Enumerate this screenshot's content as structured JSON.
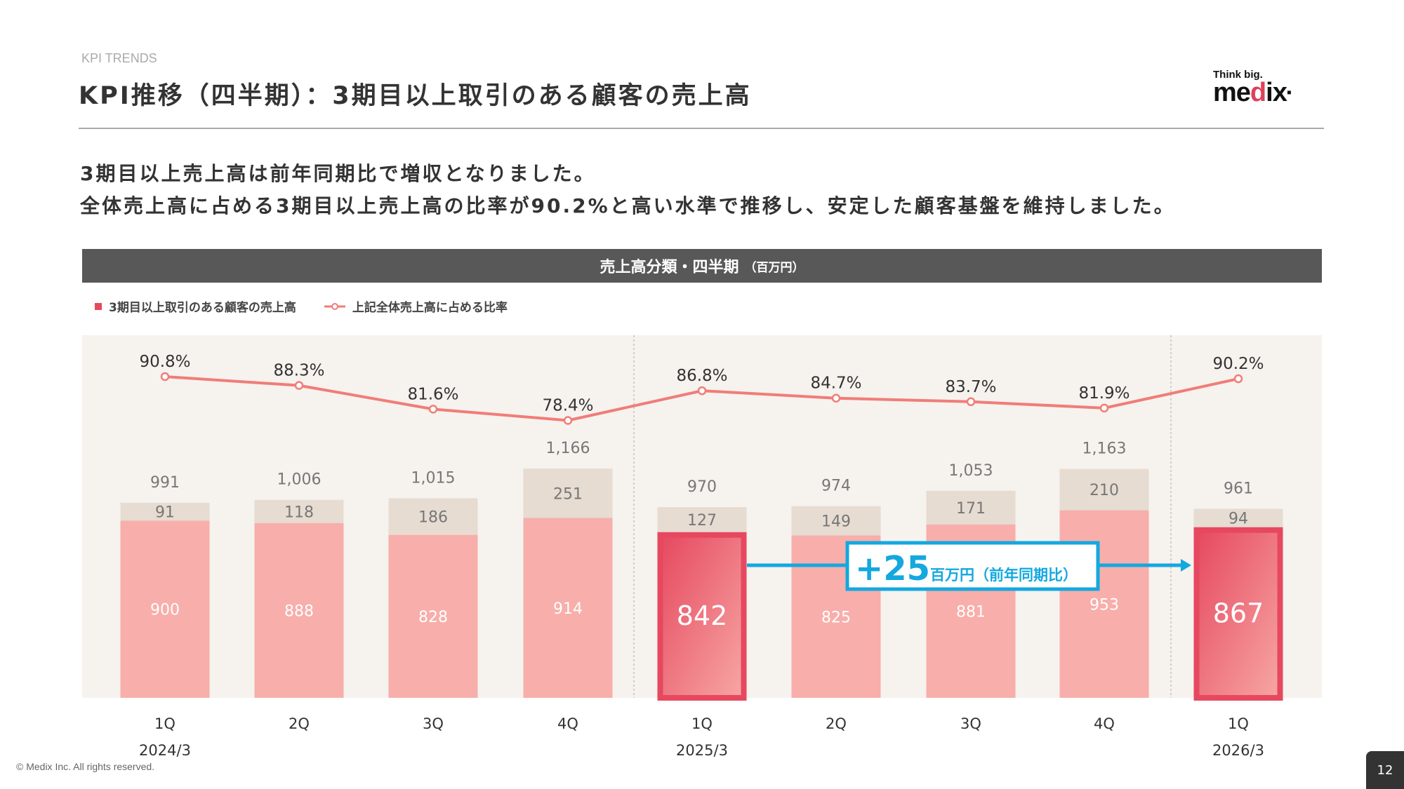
{
  "header": {
    "kicker": "KPI TRENDS",
    "title": "KPI推移（四半期）：3期目以上取引のある顧客の売上高",
    "logo_tagline": "Think big.",
    "logo_text": "medix"
  },
  "lead": [
    "3期目以上売上高は前年同期比で増収となりました。",
    "全体売上高に占める3期目以上売上高の比率が90.2%と高い水準で推移し、安定した顧客基盤を維持しました。"
  ],
  "band": {
    "title": "売上高分類・四半期",
    "unit": "（百万円）"
  },
  "legend": {
    "bar": "3期目以上取引のある顧客の売上高",
    "line": "上記全体売上高に占める比率"
  },
  "chart_data": {
    "type": "bar",
    "stacked": true,
    "categories": [
      "1Q",
      "2Q",
      "3Q",
      "4Q",
      "1Q",
      "2Q",
      "3Q",
      "4Q",
      "1Q"
    ],
    "year_labels": [
      "2024/3",
      "",
      "",
      "",
      "2025/3",
      "",
      "",
      "",
      "2026/3"
    ],
    "series": [
      {
        "name": "3期目以上取引のある顧客の売上高",
        "values": [
          900,
          888,
          828,
          914,
          842,
          825,
          881,
          953,
          867
        ],
        "color": "#f8aeaa"
      },
      {
        "values": [
          91,
          118,
          186,
          251,
          127,
          149,
          171,
          210,
          94
        ],
        "color": "#e6dcd2"
      }
    ],
    "totals": [
      "991",
      "1,006",
      "1,015",
      "1,166",
      "970",
      "974",
      "1,053",
      "1,163",
      "961"
    ],
    "line": {
      "name": "上記全体売上高に占める比率",
      "values": [
        90.8,
        88.3,
        81.6,
        78.4,
        86.8,
        84.7,
        83.7,
        81.9,
        90.2
      ],
      "labels": [
        "90.8%",
        "88.3%",
        "81.6%",
        "78.4%",
        "86.8%",
        "84.7%",
        "83.7%",
        "81.9%",
        "90.2%"
      ],
      "color": "#f07d78"
    },
    "highlight_indices": [
      4,
      8
    ],
    "highlight_color": "#e6485f",
    "annotation": {
      "value": "+25",
      "unit": "百万円",
      "note": "（前年同期比）",
      "color": "#13a8e0"
    }
  },
  "footer": {
    "copyright": "© Medix Inc. All rights reserved.",
    "page": "12"
  }
}
